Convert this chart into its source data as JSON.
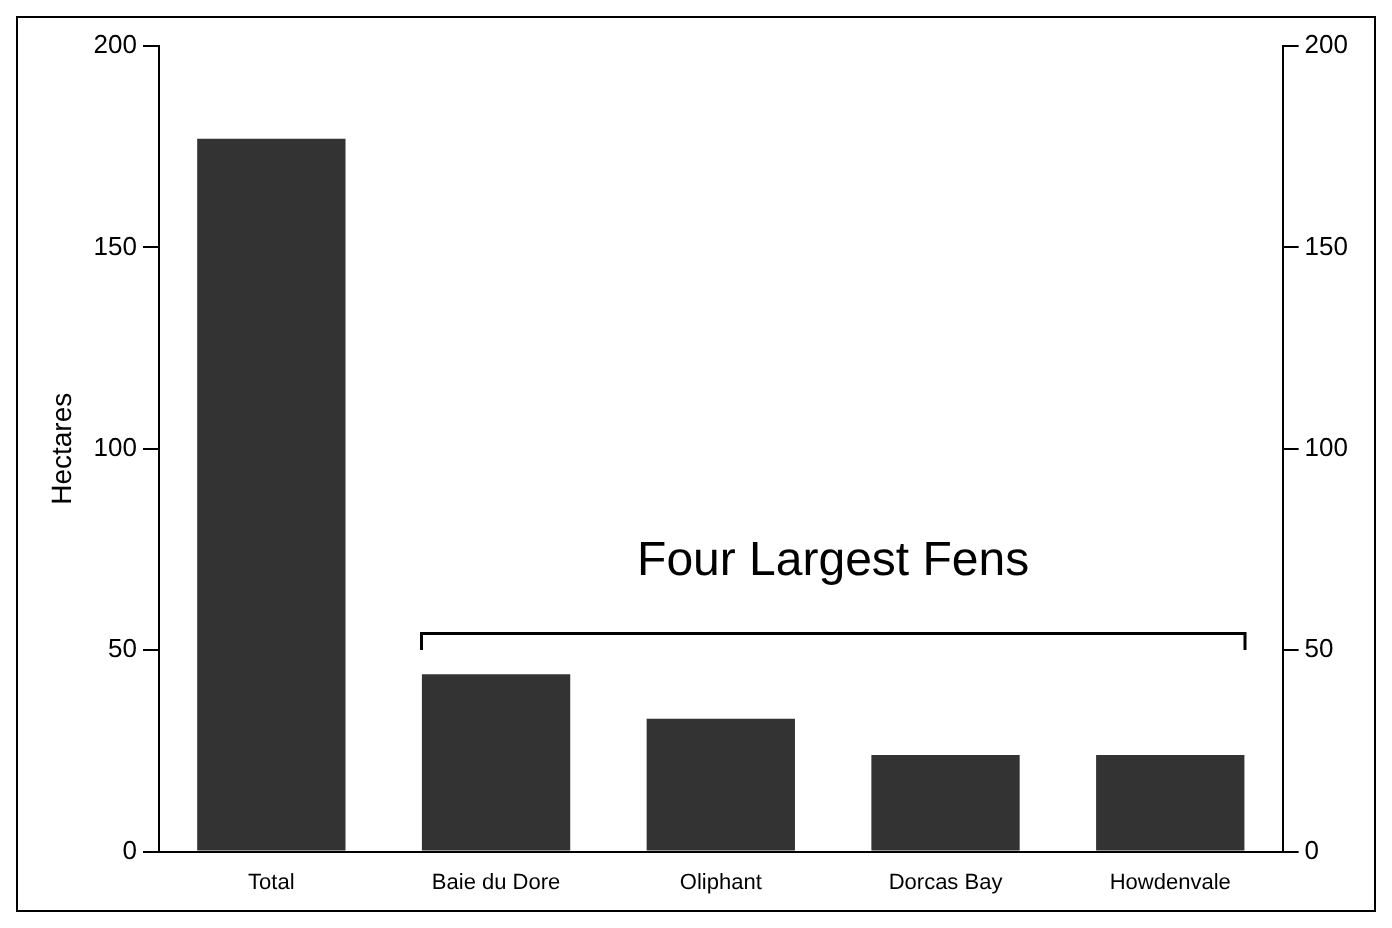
{
  "chart_data": {
    "type": "bar",
    "ylabel": "Hectares",
    "categories": [
      "Total",
      "Baie du Dore",
      "Oliphant",
      "Dorcas Bay",
      "Howdenvale"
    ],
    "values": [
      177,
      44,
      33,
      24,
      24
    ],
    "color": "#333333",
    "ylim": [
      0,
      200
    ],
    "yticks": [
      0,
      50,
      100,
      150,
      200
    ],
    "y2lim": [
      0,
      200
    ],
    "y2ticks": [
      0,
      50,
      100,
      150,
      200
    ],
    "grid": false,
    "legend": false,
    "annotations": [
      "Four Largest Fens"
    ]
  }
}
